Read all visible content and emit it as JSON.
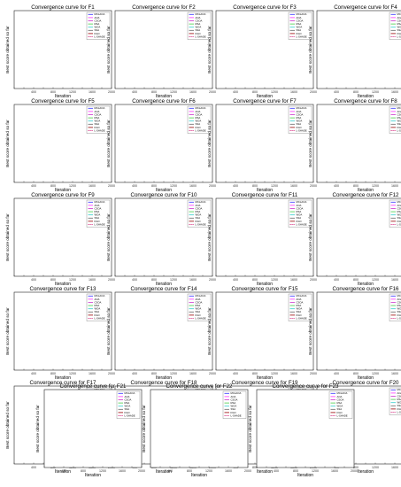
{
  "figure": {
    "axis_label_x": "Iteration",
    "axis_label_y": "Best score obtained so far",
    "legend_entries": [
      "MCLAOA",
      "AOA",
      "CSOA",
      "RSA",
      "WOA",
      "SSA",
      "FGO",
      "L-SHADE"
    ]
  },
  "colors": {
    "MCLAOA": "#3333ff",
    "AOA": "#ff33ff",
    "CSOA": "#cc33cc",
    "RSA": "#44cc44",
    "WOA": "#33cccc",
    "SSA": "#666666",
    "FGO": "#990000",
    "L-SHADE": "#cc0066"
  },
  "chart_data": [
    {
      "type": "line",
      "title": "Convergence curve for F1",
      "x": [
        0,
        2000
      ],
      "series": []
    },
    {
      "type": "line",
      "title": "Convergence curve for F2",
      "x": [
        0,
        2000
      ],
      "series": []
    },
    {
      "type": "line",
      "title": "Convergence curve for F3",
      "x": [
        0,
        2000
      ],
      "series": []
    },
    {
      "type": "line",
      "title": "Convergence curve for F4",
      "x": [
        0,
        2000
      ],
      "series": []
    },
    {
      "type": "line",
      "title": "Convergence curve for F5",
      "x": [
        0,
        2000
      ],
      "series": []
    },
    {
      "type": "line",
      "title": "Convergence curve for F6",
      "x": [
        0,
        2000
      ],
      "series": []
    },
    {
      "type": "line",
      "title": "Convergence curve for F7",
      "x": [
        0,
        2000
      ],
      "series": []
    },
    {
      "type": "line",
      "title": "Convergence curve for F8",
      "x": [
        0,
        2000
      ],
      "series": []
    },
    {
      "type": "line",
      "title": "Convergence curve for F9",
      "x": [
        0,
        2000
      ],
      "series": []
    },
    {
      "type": "line",
      "title": "Convergence curve for F10",
      "x": [
        0,
        2000
      ],
      "series": []
    },
    {
      "type": "line",
      "title": "Convergence curve for F11",
      "x": [
        0,
        2000
      ],
      "series": []
    },
    {
      "type": "line",
      "title": "Convergence curve for F12",
      "x": [
        0,
        2000
      ],
      "series": []
    },
    {
      "type": "line",
      "title": "Convergence curve for F13",
      "x": [
        0,
        2000
      ],
      "series": []
    },
    {
      "type": "line",
      "title": "Convergence curve for F14",
      "x": [
        0,
        2000
      ],
      "series": []
    },
    {
      "type": "line",
      "title": "Convergence curve for F15",
      "x": [
        0,
        2000
      ],
      "series": []
    },
    {
      "type": "line",
      "title": "Convergence curve for F16",
      "x": [
        0,
        2000
      ],
      "series": []
    },
    {
      "type": "line",
      "title": "Convergence curve for F17",
      "x": [
        0,
        2000
      ],
      "series": []
    },
    {
      "type": "line",
      "title": "Convergence curve for F18",
      "x": [
        0,
        2000
      ],
      "series": []
    },
    {
      "type": "line",
      "title": "Convergence curve for F19",
      "x": [
        0,
        2000
      ],
      "series": []
    },
    {
      "type": "line",
      "title": "Convergence curve for F20",
      "x": [
        0,
        2000
      ],
      "series": []
    },
    {
      "type": "line",
      "title": "Convergence curve for F21",
      "x": [
        0,
        2000
      ],
      "series": []
    },
    {
      "type": "line",
      "title": "Convergence curve for F22",
      "x": [
        0,
        2000
      ],
      "series": []
    },
    {
      "type": "line",
      "title": "Convergence curve for F23",
      "x": [
        0,
        2000
      ],
      "series": []
    }
  ]
}
